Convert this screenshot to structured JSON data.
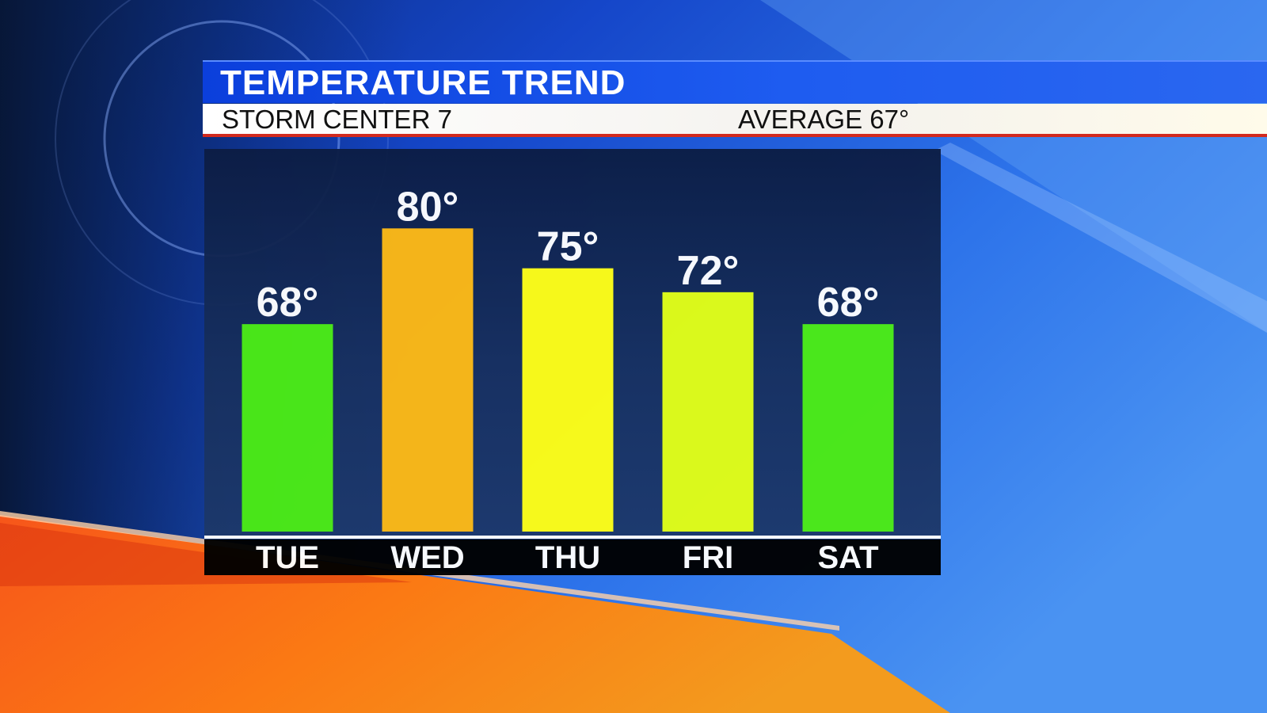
{
  "header": {
    "title": "TEMPERATURE TREND",
    "station": "STORM CENTER 7",
    "average": "AVERAGE 67°"
  },
  "colors": {
    "title_bar": "#1a55ee",
    "accent_stripe": "#d22a1e",
    "panel": "#13285a"
  },
  "chart_data": {
    "type": "bar",
    "title": "TEMPERATURE TREND",
    "categories": [
      "TUE",
      "WED",
      "THU",
      "FRI",
      "SAT"
    ],
    "values": [
      68,
      80,
      75,
      72,
      68
    ],
    "data_labels": [
      "68°",
      "80°",
      "75°",
      "72°",
      "68°"
    ],
    "colors": [
      "#4cec14",
      "#fdb913",
      "#ffff14",
      "#e2ff14",
      "#4cec14"
    ],
    "ylim": [
      42,
      84
    ],
    "grid": false,
    "legend": "none"
  }
}
